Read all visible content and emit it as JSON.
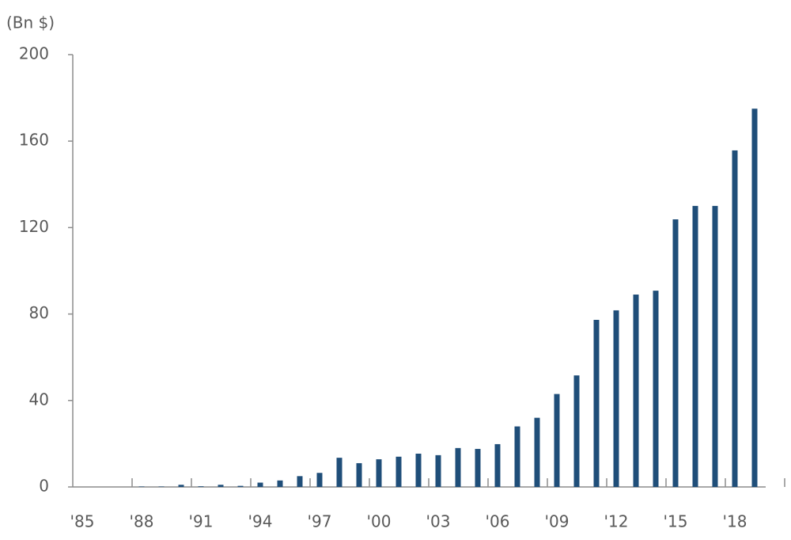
{
  "chart_data": {
    "type": "bar",
    "y_label": "(Bn $)",
    "categories": [
      "'85",
      null,
      null,
      "'88",
      null,
      null,
      "'91",
      null,
      null,
      "'94",
      null,
      null,
      "'97",
      null,
      null,
      "'00",
      null,
      null,
      "'03",
      null,
      null,
      "'06",
      null,
      null,
      "'09",
      null,
      null,
      "'12",
      null,
      null,
      "'15",
      null,
      null,
      "'18",
      null
    ],
    "values": [
      0,
      0,
      0,
      0.2,
      0.2,
      1,
      0.3,
      1,
      0.5,
      2,
      3,
      5,
      6.5,
      13.5,
      11,
      12.8,
      14,
      15.4,
      14.7,
      18,
      17.6,
      19.8,
      28,
      32,
      43,
      51.6,
      77.3,
      81.7,
      89,
      90.8,
      123.8,
      130,
      130,
      155.7,
      175
    ],
    "color": "#1f4e79",
    "ylim": [
      0,
      200
    ],
    "yticks": [
      0,
      40,
      80,
      120,
      160,
      200
    ],
    "grid": false
  }
}
